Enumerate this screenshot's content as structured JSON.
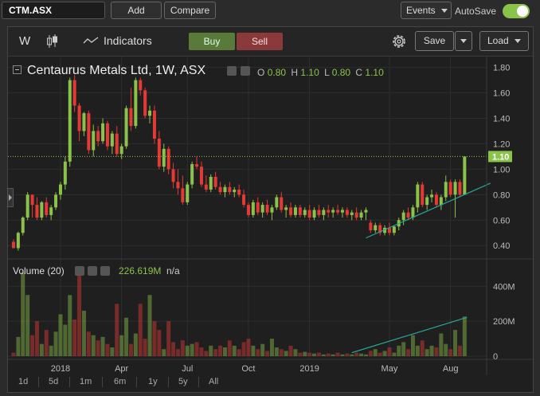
{
  "topbar": {
    "symbol_value": "CTM.ASX",
    "add_label": "Add",
    "compare_label": "Compare",
    "events_label": "Events",
    "autosave_label": "AutoSave"
  },
  "toolbar": {
    "interval": "W",
    "indicators_label": "Indicators",
    "buy_label": "Buy",
    "sell_label": "Sell",
    "save_label": "Save",
    "load_label": "Load"
  },
  "ohlc": {
    "title": "Centaurus Metals Ltd, 1W, ASX",
    "o_label": "O",
    "o_value": "0.80",
    "h_label": "H",
    "h_value": "1.10",
    "l_label": "L",
    "l_value": "0.80",
    "c_label": "C",
    "c_value": "1.10",
    "last_price": "1.10"
  },
  "volume_legend": {
    "title": "Volume (20)",
    "value": "226.619M",
    "extra": "n/a"
  },
  "range_buttons": [
    "1d",
    "5d",
    "1m",
    "6m",
    "1y",
    "5y",
    "All"
  ],
  "colors": {
    "up": "#8bc34a",
    "down": "#e53935",
    "trend": "#26a69a",
    "accent": "#8bc34a"
  },
  "chart_data": {
    "type": "candlestick",
    "title": "Centaurus Metals Ltd, 1W, ASX",
    "price_ticks": [
      "0.40",
      "0.60",
      "0.80",
      "1.00",
      "1.20",
      "1.40",
      "1.60",
      "1.80"
    ],
    "price_tick_values": [
      0.4,
      0.6,
      0.8,
      1.0,
      1.2,
      1.4,
      1.6,
      1.8
    ],
    "ylim": [
      0.32,
      1.86
    ],
    "volume_ticks": [
      "0",
      "200M",
      "400M"
    ],
    "volume_tick_values": [
      0,
      200,
      400
    ],
    "volume_unit": "M",
    "volume_ylim": [
      0,
      520
    ],
    "x_labels": [
      "2018",
      "Apr",
      "Jul",
      "Oct",
      "2019",
      "May",
      "Aug"
    ],
    "x_label_week_index": [
      10,
      23,
      37,
      50,
      63,
      80,
      93
    ],
    "candles": [
      [
        0.43,
        0.45,
        0.38,
        0.38,
        20
      ],
      [
        0.38,
        0.51,
        0.36,
        0.5,
        110
      ],
      [
        0.5,
        0.63,
        0.48,
        0.62,
        480
      ],
      [
        0.62,
        0.82,
        0.6,
        0.8,
        350
      ],
      [
        0.8,
        0.8,
        0.62,
        0.72,
        120
      ],
      [
        0.72,
        0.78,
        0.6,
        0.62,
        200
      ],
      [
        0.62,
        0.75,
        0.6,
        0.74,
        70
      ],
      [
        0.74,
        0.78,
        0.62,
        0.64,
        150
      ],
      [
        0.64,
        0.72,
        0.6,
        0.7,
        60
      ],
      [
        0.7,
        0.82,
        0.68,
        0.8,
        140
      ],
      [
        0.8,
        0.9,
        0.76,
        0.88,
        240
      ],
      [
        0.88,
        1.1,
        0.84,
        1.06,
        180
      ],
      [
        1.06,
        1.72,
        1.02,
        1.7,
        350
      ],
      [
        1.7,
        1.74,
        1.45,
        1.5,
        210
      ],
      [
        1.5,
        1.52,
        1.22,
        1.3,
        500
      ],
      [
        1.3,
        1.45,
        1.26,
        1.44,
        260
      ],
      [
        1.44,
        1.46,
        1.12,
        1.15,
        140
      ],
      [
        1.15,
        1.35,
        1.1,
        1.3,
        120
      ],
      [
        1.3,
        1.34,
        1.18,
        1.22,
        90
      ],
      [
        1.22,
        1.4,
        1.2,
        1.36,
        110
      ],
      [
        1.36,
        1.38,
        1.15,
        1.18,
        70
      ],
      [
        1.18,
        1.3,
        1.12,
        1.28,
        50
      ],
      [
        1.28,
        1.34,
        1.1,
        1.12,
        300
      ],
      [
        1.12,
        1.2,
        1.08,
        1.18,
        120
      ],
      [
        1.18,
        1.5,
        1.16,
        1.48,
        220
      ],
      [
        1.48,
        1.64,
        1.3,
        1.34,
        70
      ],
      [
        1.34,
        1.72,
        1.32,
        1.7,
        130
      ],
      [
        1.7,
        1.72,
        1.58,
        1.62,
        300
      ],
      [
        1.62,
        1.64,
        1.4,
        1.42,
        100
      ],
      [
        1.42,
        1.5,
        1.36,
        1.46,
        350
      ],
      [
        1.46,
        1.5,
        1.2,
        1.24,
        200
      ],
      [
        1.24,
        1.3,
        1.0,
        1.02,
        150
      ],
      [
        1.02,
        1.2,
        0.98,
        1.16,
        40
      ],
      [
        1.16,
        1.18,
        0.96,
        1.0,
        200
      ],
      [
        1.0,
        1.05,
        0.85,
        0.9,
        80
      ],
      [
        0.9,
        1.0,
        0.8,
        0.85,
        40
      ],
      [
        0.85,
        0.95,
        0.72,
        0.74,
        90
      ],
      [
        0.74,
        0.9,
        0.72,
        0.88,
        60
      ],
      [
        0.88,
        1.06,
        0.85,
        1.04,
        70
      ],
      [
        1.04,
        1.1,
        1.0,
        1.02,
        80
      ],
      [
        1.02,
        1.06,
        0.86,
        0.88,
        50
      ],
      [
        0.88,
        0.95,
        0.82,
        0.84,
        30
      ],
      [
        0.84,
        0.96,
        0.82,
        0.94,
        60
      ],
      [
        0.94,
        0.98,
        0.84,
        0.86,
        40
      ],
      [
        0.86,
        0.9,
        0.8,
        0.82,
        60
      ],
      [
        0.82,
        0.88,
        0.78,
        0.86,
        50
      ],
      [
        0.86,
        0.9,
        0.8,
        0.82,
        90
      ],
      [
        0.82,
        0.86,
        0.78,
        0.84,
        60
      ],
      [
        0.84,
        0.88,
        0.78,
        0.8,
        40
      ],
      [
        0.8,
        0.84,
        0.7,
        0.72,
        80
      ],
      [
        0.72,
        0.74,
        0.62,
        0.64,
        100
      ],
      [
        0.64,
        0.76,
        0.62,
        0.74,
        60
      ],
      [
        0.74,
        0.78,
        0.64,
        0.66,
        40
      ],
      [
        0.66,
        0.74,
        0.62,
        0.72,
        70
      ],
      [
        0.72,
        0.76,
        0.64,
        0.66,
        30
      ],
      [
        0.66,
        0.72,
        0.6,
        0.7,
        100
      ],
      [
        0.7,
        0.8,
        0.68,
        0.78,
        50
      ],
      [
        0.78,
        0.82,
        0.66,
        0.68,
        40
      ],
      [
        0.68,
        0.72,
        0.62,
        0.7,
        30
      ],
      [
        0.7,
        0.74,
        0.62,
        0.64,
        60
      ],
      [
        0.64,
        0.72,
        0.62,
        0.7,
        40
      ],
      [
        0.7,
        0.72,
        0.62,
        0.64,
        20
      ],
      [
        0.64,
        0.7,
        0.62,
        0.68,
        25
      ],
      [
        0.68,
        0.72,
        0.6,
        0.62,
        20
      ],
      [
        0.62,
        0.7,
        0.6,
        0.68,
        15
      ],
      [
        0.68,
        0.72,
        0.62,
        0.64,
        20
      ],
      [
        0.64,
        0.7,
        0.6,
        0.68,
        10
      ],
      [
        0.68,
        0.72,
        0.62,
        0.66,
        15
      ],
      [
        0.66,
        0.7,
        0.62,
        0.68,
        10
      ],
      [
        0.68,
        0.72,
        0.64,
        0.66,
        20
      ],
      [
        0.66,
        0.7,
        0.62,
        0.68,
        10
      ],
      [
        0.68,
        0.7,
        0.62,
        0.64,
        15
      ],
      [
        0.64,
        0.68,
        0.6,
        0.66,
        10
      ],
      [
        0.66,
        0.7,
        0.6,
        0.62,
        20
      ],
      [
        0.62,
        0.68,
        0.6,
        0.66,
        15
      ],
      [
        0.66,
        0.7,
        0.6,
        0.68,
        10
      ],
      [
        0.58,
        0.6,
        0.5,
        0.52,
        30
      ],
      [
        0.52,
        0.58,
        0.5,
        0.56,
        40
      ],
      [
        0.56,
        0.58,
        0.48,
        0.5,
        20
      ],
      [
        0.5,
        0.56,
        0.48,
        0.54,
        30
      ],
      [
        0.54,
        0.58,
        0.48,
        0.5,
        50
      ],
      [
        0.5,
        0.56,
        0.48,
        0.55,
        20
      ],
      [
        0.55,
        0.62,
        0.52,
        0.6,
        60
      ],
      [
        0.6,
        0.68,
        0.56,
        0.66,
        80
      ],
      [
        0.66,
        0.7,
        0.6,
        0.62,
        40
      ],
      [
        0.62,
        0.72,
        0.6,
        0.7,
        120
      ],
      [
        0.7,
        0.9,
        0.66,
        0.88,
        60
      ],
      [
        0.88,
        0.9,
        0.7,
        0.72,
        90
      ],
      [
        0.72,
        0.8,
        0.68,
        0.78,
        40
      ],
      [
        0.78,
        0.84,
        0.74,
        0.8,
        60
      ],
      [
        0.8,
        0.82,
        0.7,
        0.72,
        50
      ],
      [
        0.72,
        0.8,
        0.68,
        0.78,
        130
      ],
      [
        0.78,
        0.95,
        0.75,
        0.9,
        70
      ],
      [
        0.9,
        0.92,
        0.78,
        0.8,
        40
      ],
      [
        0.8,
        0.92,
        0.62,
        0.9,
        150
      ],
      [
        0.9,
        0.92,
        0.78,
        0.8,
        60
      ],
      [
        0.8,
        1.1,
        0.8,
        1.1,
        227
      ]
    ]
  }
}
